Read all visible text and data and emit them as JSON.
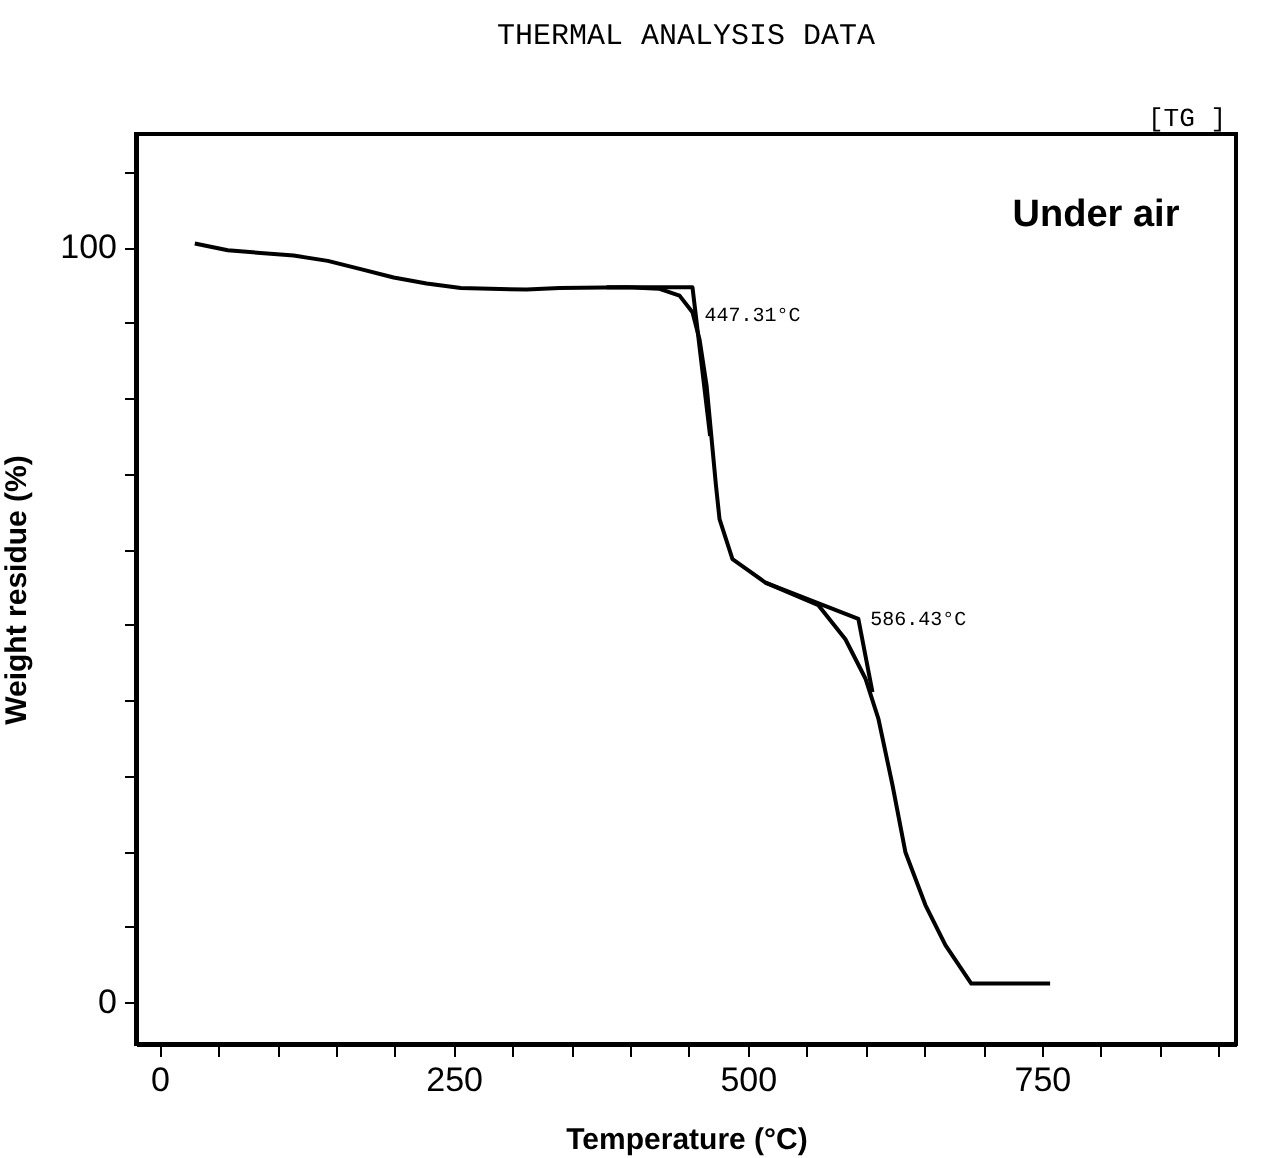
{
  "chart_data": {
    "type": "line",
    "title": "THERMAL ANALYSIS DATA",
    "xlabel": "Temperature (°C)",
    "ylabel": "Weight residue (%)",
    "xlim": [
      -20,
      915
    ],
    "ylim": [
      -5.5,
      115
    ],
    "xticks": [
      0,
      {
        "value": 50,
        "label": null
      },
      {
        "value": 100,
        "label": null
      },
      {
        "value": 150,
        "label": null
      },
      {
        "value": 200,
        "label": null
      },
      250,
      {
        "value": 300,
        "label": null
      },
      {
        "value": 350,
        "label": null
      },
      {
        "value": 400,
        "label": null
      },
      {
        "value": 450,
        "label": null
      },
      500,
      {
        "value": 550,
        "label": null
      },
      {
        "value": 600,
        "label": null
      },
      {
        "value": 650,
        "label": null
      },
      {
        "value": 700,
        "label": null
      },
      750,
      {
        "value": 800,
        "label": null
      },
      {
        "value": 850,
        "label": null
      },
      {
        "value": 900,
        "label": null
      }
    ],
    "yticks": [
      0,
      {
        "value": 10,
        "label": null
      },
      {
        "value": 20,
        "label": null
      },
      {
        "value": 30,
        "label": null
      },
      {
        "value": 40,
        "label": null
      },
      {
        "value": 50,
        "label": null
      },
      {
        "value": 60,
        "label": null
      },
      {
        "value": 70,
        "label": null
      },
      {
        "value": 80,
        "label": null
      },
      {
        "value": 90,
        "label": null
      },
      100,
      {
        "value": 110,
        "label": null
      }
    ],
    "grid": false,
    "marker": "none",
    "line_style": "solid",
    "series": [
      {
        "color": "#000000",
        "x": [
          30,
          58,
          114,
          143,
          171,
          199,
          227,
          256,
          312,
          340,
          397,
          425,
          442,
          453,
          459,
          465,
          473,
          476,
          487,
          515,
          560,
          583,
          600,
          611,
          623,
          634,
          651,
          668,
          690,
          757
        ],
        "values": [
          100.5,
          99.6,
          98.9,
          98.2,
          97.1,
          96.0,
          95.2,
          94.6,
          94.4,
          94.6,
          94.7,
          94.5,
          93.6,
          91.4,
          87.8,
          81.7,
          68.4,
          64.0,
          58.7,
          55.6,
          52.6,
          48.1,
          42.9,
          37.6,
          28.8,
          19.9,
          12.9,
          7.6,
          2.5,
          2.5
        ]
      },
      {
        "color": "#000000",
        "x": [
          380,
          453,
          468
        ],
        "values": [
          94.7,
          94.7,
          75
        ]
      },
      {
        "color": "#000000",
        "x": [
          515,
          594,
          606
        ],
        "values": [
          55.6,
          50.8,
          41.1
        ]
      }
    ],
    "annotations": [
      "[TG ]",
      "Under air",
      {
        "text": "447.31°C",
        "x": 453,
        "y": 91
      },
      {
        "text": "586.43°C",
        "x": 594,
        "y": 50.8
      }
    ]
  }
}
